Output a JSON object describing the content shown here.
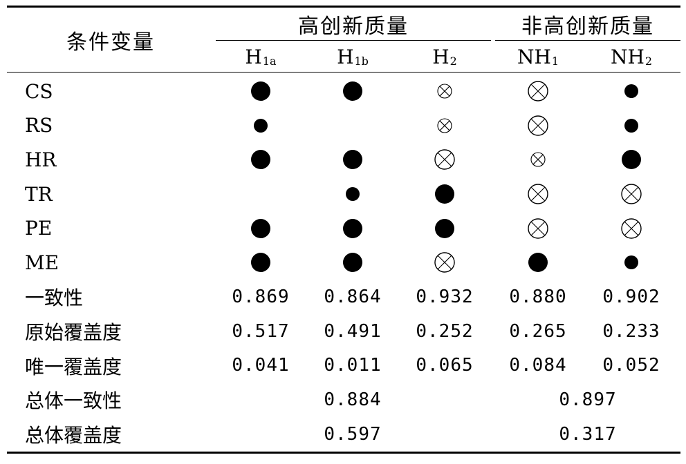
{
  "table": {
    "stub_header": "条件变量",
    "groups": [
      {
        "label": "高创新质量"
      },
      {
        "label": "非高创新质量"
      }
    ],
    "columns": [
      {
        "base": "H",
        "sub": "1a"
      },
      {
        "base": "H",
        "sub": "1b"
      },
      {
        "base": "H",
        "sub": "2"
      },
      {
        "base": "NH",
        "sub": "1"
      },
      {
        "base": "NH",
        "sub": "2"
      }
    ],
    "condition_rows": [
      {
        "label": "CS",
        "cells": [
          "core-present",
          "core-present",
          "peripheral-absent",
          "core-absent",
          "peripheral-present"
        ]
      },
      {
        "label": "RS",
        "cells": [
          "peripheral-present",
          "",
          "peripheral-absent",
          "core-absent",
          "peripheral-present"
        ]
      },
      {
        "label": "HR",
        "cells": [
          "core-present",
          "core-present",
          "core-absent",
          "peripheral-absent",
          "core-present"
        ]
      },
      {
        "label": "TR",
        "cells": [
          "",
          "peripheral-present",
          "core-present",
          "core-absent",
          "core-absent"
        ]
      },
      {
        "label": "PE",
        "cells": [
          "core-present",
          "core-present",
          "core-present",
          "core-absent",
          "core-absent"
        ]
      },
      {
        "label": "ME",
        "cells": [
          "core-present",
          "core-present",
          "core-absent",
          "core-present",
          "peripheral-present"
        ]
      }
    ],
    "metric_rows": [
      {
        "label": "一致性",
        "values": [
          "0.869",
          "0.864",
          "0.932",
          "0.880",
          "0.902"
        ]
      },
      {
        "label": "原始覆盖度",
        "values": [
          "0.517",
          "0.491",
          "0.252",
          "0.265",
          "0.233"
        ]
      },
      {
        "label": "唯一覆盖度",
        "values": [
          "0.041",
          "0.011",
          "0.065",
          "0.084",
          "0.052"
        ]
      }
    ],
    "overall_rows": [
      {
        "label": "总体一致性",
        "high": "0.884",
        "non_high": "0.897"
      },
      {
        "label": "总体覆盖度",
        "high": "0.597",
        "non_high": "0.317"
      }
    ]
  }
}
